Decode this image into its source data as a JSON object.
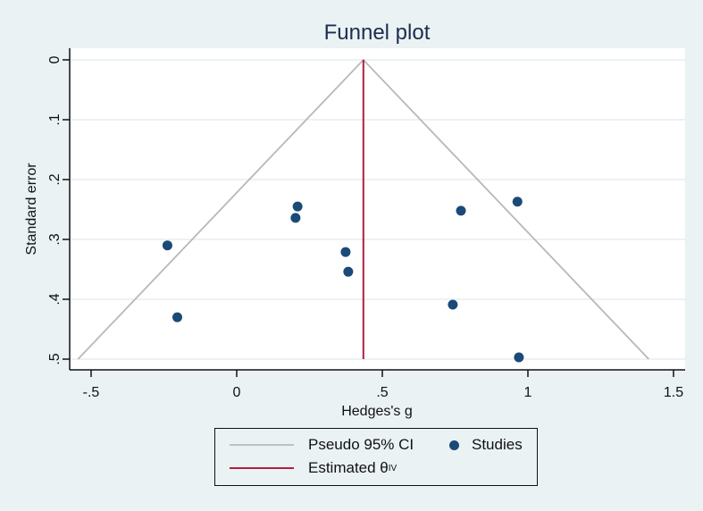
{
  "chart_data": {
    "type": "scatter",
    "title": "Funnel plot",
    "xlabel": "Hedges's g",
    "ylabel": "Standard error",
    "xlim": [
      -0.55,
      1.55
    ],
    "ylim": [
      0.5,
      0
    ],
    "y_inverted": true,
    "x_ticks": [
      "-.5",
      "0",
      ".5",
      "1",
      "1.5"
    ],
    "x_tick_values": [
      -0.5,
      0,
      0.5,
      1,
      1.5
    ],
    "y_ticks": [
      "0",
      ".1",
      ".2",
      ".3",
      ".4",
      ".5"
    ],
    "y_tick_values": [
      0,
      0.1,
      0.2,
      0.3,
      0.4,
      0.5
    ],
    "grid": "horizontal",
    "legend_position": "bottom",
    "estimated_theta": 0.435,
    "pseudo_ci": {
      "apex": [
        0.435,
        0
      ],
      "left_end": [
        -0.545,
        0.5
      ],
      "right_end": [
        1.415,
        0.5
      ]
    },
    "series": [
      {
        "name": "Studies",
        "points": [
          {
            "x": -0.238,
            "y": 0.31
          },
          {
            "x": -0.204,
            "y": 0.43
          },
          {
            "x": 0.202,
            "y": 0.264
          },
          {
            "x": 0.209,
            "y": 0.245
          },
          {
            "x": 0.374,
            "y": 0.321
          },
          {
            "x": 0.383,
            "y": 0.354
          },
          {
            "x": 0.742,
            "y": 0.409
          },
          {
            "x": 0.77,
            "y": 0.252
          },
          {
            "x": 0.964,
            "y": 0.237
          },
          {
            "x": 0.969,
            "y": 0.497
          }
        ]
      }
    ]
  },
  "legend": {
    "ci_label": "Pseudo 95% CI",
    "studies_label": "Studies",
    "theta_label": "Estimated θ",
    "theta_sub": "IV"
  },
  "colors": {
    "background": "#eaf2f3",
    "plot_bg": "#ffffff",
    "ci_line": "#b8b8b8",
    "theta_line": "#b0203c",
    "points": "#1a4a78",
    "title": "#1c2d4f",
    "grid": "#e6eef0"
  }
}
